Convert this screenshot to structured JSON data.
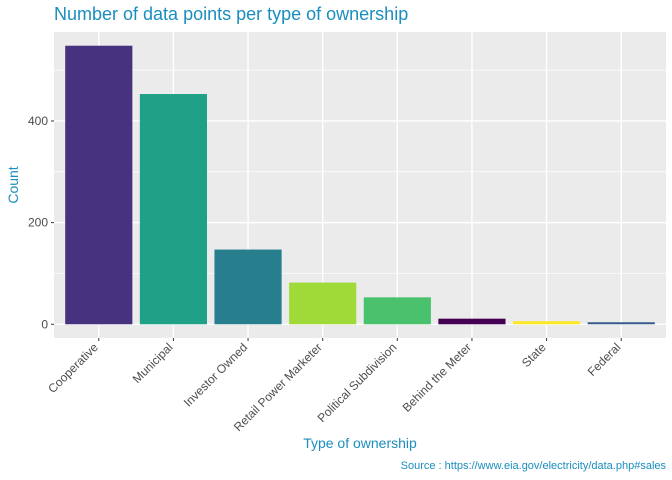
{
  "chart_data": {
    "type": "bar",
    "title": "Number of data points per type of ownership",
    "xlabel": "Type of ownership",
    "ylabel": "Count",
    "caption": "Source : https://www.eia.gov/electricity/data.php#sales",
    "categories": [
      "Cooperative",
      "Municipal",
      "Investor Owned",
      "Retail Power Marketer",
      "Political Subdivision",
      "Behind the Meter",
      "State",
      "Federal"
    ],
    "values": [
      548,
      453,
      147,
      82,
      53,
      11,
      6,
      4
    ],
    "bar_colors": [
      "#46327E",
      "#1FA187",
      "#277F8E",
      "#A0DA39",
      "#4AC16D",
      "#440154",
      "#FDE725",
      "#365C8D"
    ],
    "yticks": [
      0,
      200,
      400
    ],
    "ylim": [
      -27,
      575
    ],
    "grid": true,
    "legend": "none"
  },
  "colors": {
    "accent": "#1A8EBF",
    "panel": "#EBEBEB",
    "grid": "#FFFFFF",
    "tick_label": "#4D4D4D",
    "tick": "#333333"
  }
}
